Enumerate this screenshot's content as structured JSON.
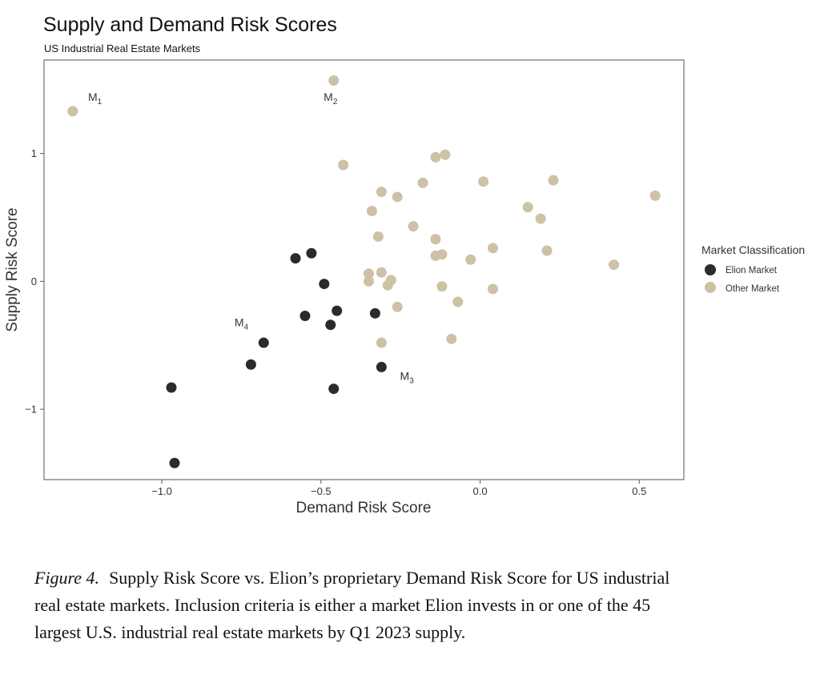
{
  "chart_data": {
    "type": "scatter",
    "title": "Supply and Demand Risk Scores",
    "subtitle": "US Industrial Real Estate Markets",
    "xlabel": "Demand Risk Score",
    "ylabel": "Supply Risk Score",
    "xlim": [
      -1.37,
      0.64
    ],
    "ylim": [
      -1.55,
      1.73
    ],
    "x_ticks": [
      -1.0,
      -0.5,
      0.0,
      0.5
    ],
    "x_tick_labels": [
      "−1.0",
      "−0.5",
      "0.0",
      "0.5"
    ],
    "y_ticks": [
      -1,
      0,
      1
    ],
    "y_tick_labels": [
      "−1",
      "0",
      "1"
    ],
    "grid": false,
    "legend": {
      "title": "Market Classification",
      "placement": "right",
      "entries": [
        "Elion Market",
        "Other Market"
      ]
    },
    "series": [
      {
        "name": "Elion Market",
        "color": "#2b2b2b",
        "points": [
          [
            -0.97,
            -0.83
          ],
          [
            -0.96,
            -1.42
          ],
          [
            -0.72,
            -0.65
          ],
          [
            -0.68,
            -0.48
          ],
          [
            -0.58,
            0.18
          ],
          [
            -0.55,
            -0.27
          ],
          [
            -0.53,
            0.22
          ],
          [
            -0.49,
            -0.02
          ],
          [
            -0.47,
            -0.34
          ],
          [
            -0.46,
            -0.84
          ],
          [
            -0.45,
            -0.23
          ],
          [
            -0.33,
            -0.25
          ],
          [
            -0.31,
            -0.67
          ]
        ]
      },
      {
        "name": "Other Market",
        "color": "#cdc1a6",
        "points": [
          [
            -1.28,
            1.33
          ],
          [
            -0.46,
            1.57
          ],
          [
            -0.43,
            0.91
          ],
          [
            -0.34,
            0.55
          ],
          [
            -0.32,
            0.35
          ],
          [
            -0.31,
            0.7
          ],
          [
            -0.31,
            0.07
          ],
          [
            -0.35,
            0.06
          ],
          [
            -0.35,
            0.0
          ],
          [
            -0.29,
            -0.03
          ],
          [
            -0.28,
            0.01
          ],
          [
            -0.26,
            0.66
          ],
          [
            -0.26,
            -0.2
          ],
          [
            -0.31,
            -0.48
          ],
          [
            -0.21,
            0.43
          ],
          [
            -0.18,
            0.77
          ],
          [
            -0.14,
            0.97
          ],
          [
            -0.11,
            0.99
          ],
          [
            -0.14,
            0.33
          ],
          [
            -0.14,
            0.2
          ],
          [
            -0.12,
            0.21
          ],
          [
            -0.12,
            -0.04
          ],
          [
            -0.09,
            -0.45
          ],
          [
            -0.07,
            -0.16
          ],
          [
            -0.03,
            0.17
          ],
          [
            0.01,
            0.78
          ],
          [
            0.04,
            0.26
          ],
          [
            0.04,
            -0.06
          ],
          [
            0.15,
            0.58
          ],
          [
            0.19,
            0.49
          ],
          [
            0.21,
            0.24
          ],
          [
            0.23,
            0.79
          ],
          [
            0.42,
            0.13
          ],
          [
            0.55,
            0.67
          ]
        ]
      }
    ],
    "annotations": [
      {
        "base": "M",
        "sub": "1",
        "x": -1.21,
        "y": 1.41
      },
      {
        "base": "M",
        "sub": "2",
        "x": -0.47,
        "y": 1.41
      },
      {
        "base": "M",
        "sub": "3",
        "x": -0.23,
        "y": -0.77
      },
      {
        "base": "M",
        "sub": "4",
        "x": -0.75,
        "y": -0.35
      }
    ]
  },
  "caption": {
    "figure_label": "Figure 4.",
    "text": "Supply Risk Score vs. Elion’s proprietary Demand Risk Score for US industrial real estate markets. Inclusion criteria is either a market Elion invests in or one of the 45 largest U.S. industrial real estate markets by Q1 2023 supply."
  }
}
